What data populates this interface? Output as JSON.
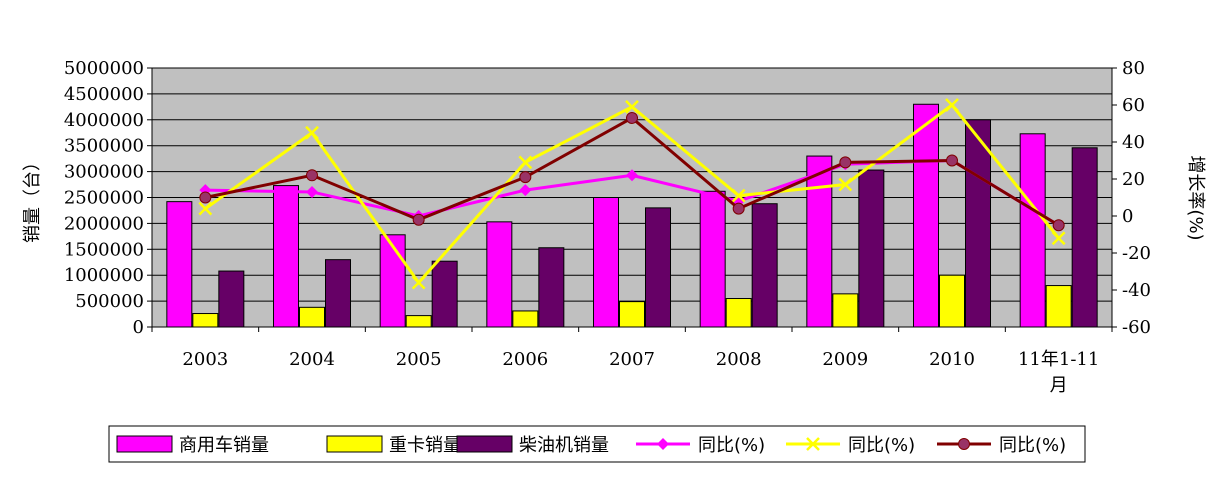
{
  "chart_data": {
    "type": "bar",
    "categories": [
      "2003",
      "2004",
      "2005",
      "2006",
      "2007",
      "2008",
      "2009",
      "2010",
      "11年1-11月"
    ],
    "bar_series": [
      {
        "name": "商用车销量",
        "color": "#ff00ff",
        "values": [
          2420000,
          2730000,
          1780000,
          2030000,
          2500000,
          2620000,
          3300000,
          4300000,
          3730000
        ]
      },
      {
        "name": "重卡销量",
        "color": "#ffff00",
        "values": [
          260000,
          380000,
          220000,
          310000,
          490000,
          550000,
          640000,
          1000000,
          800000
        ]
      },
      {
        "name": "柴油机销量",
        "color": "#660066",
        "values": [
          1080000,
          1300000,
          1270000,
          1530000,
          2300000,
          2380000,
          3030000,
          4000000,
          3460000
        ]
      }
    ],
    "line_series": [
      {
        "name": "同比(%)",
        "color": "#ff00ff",
        "marker": "diamond",
        "values": [
          14,
          13,
          0,
          14,
          22,
          8,
          28,
          30,
          -5
        ]
      },
      {
        "name": "同比(%)",
        "color": "#ffff00",
        "marker": "x",
        "values": [
          4,
          45,
          -36,
          29,
          59,
          11,
          17,
          60,
          -12
        ]
      },
      {
        "name": "同比(%)",
        "color": "#800000",
        "marker": "circle",
        "values": [
          10,
          22,
          -2,
          21,
          53,
          4,
          29,
          30,
          -5
        ]
      }
    ],
    "ylabel_left": "销量（台）",
    "ylabel_right": "增长率(%)",
    "y_left_ticks": [
      "5000000",
      "4500000",
      "4000000",
      "3500000",
      "3000000",
      "2500000",
      "2000000",
      "1500000",
      "1000000",
      "500000",
      "0"
    ],
    "y_right_ticks": [
      "80",
      "60",
      "40",
      "20",
      "0",
      "-20",
      "-40",
      "-60"
    ],
    "ylim_left": [
      0,
      5000000
    ],
    "ylim_right": [
      -60,
      80
    ],
    "plot_background": "#c0c0c0",
    "grid": true,
    "legend_position": "bottom"
  }
}
